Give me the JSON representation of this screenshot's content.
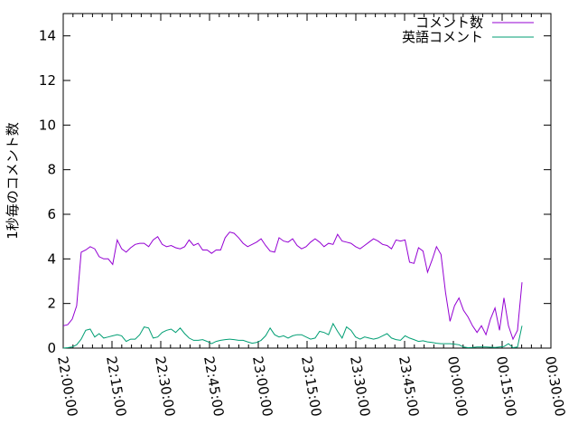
{
  "chart_data": {
    "type": "line",
    "title": "",
    "xlabel": "",
    "ylabel": "1秒毎のコメント数",
    "ylim": [
      0,
      15
    ],
    "xlim": [
      "22:00:00",
      "00:30:00"
    ],
    "x_ticks": [
      "22:00:00",
      "22:15:00",
      "22:30:00",
      "22:45:00",
      "23:00:00",
      "23:15:00",
      "23:30:00",
      "23:45:00",
      "00:00:00",
      "00:15:00",
      "00:30:00"
    ],
    "y_ticks": [
      "0",
      "2",
      "4",
      "6",
      "8",
      "10",
      "12",
      "14"
    ],
    "grid": false,
    "legend_position": "top-right",
    "x_start": "22:00:00",
    "x_step_seconds": 83,
    "series": [
      {
        "name": "コメント数",
        "color": "#9400d3",
        "values": [
          1.0,
          1.05,
          1.3,
          1.9,
          4.3,
          4.4,
          4.55,
          4.45,
          4.1,
          4.0,
          4.0,
          3.75,
          4.85,
          4.45,
          4.3,
          4.5,
          4.65,
          4.7,
          4.7,
          4.55,
          4.85,
          5.0,
          4.65,
          4.55,
          4.6,
          4.5,
          4.45,
          4.55,
          4.85,
          4.6,
          4.7,
          4.4,
          4.4,
          4.25,
          4.4,
          4.4,
          4.95,
          5.2,
          5.15,
          4.95,
          4.7,
          4.55,
          4.65,
          4.75,
          4.9,
          4.6,
          4.35,
          4.3,
          4.95,
          4.8,
          4.75,
          4.9,
          4.6,
          4.45,
          4.55,
          4.75,
          4.9,
          4.75,
          4.55,
          4.7,
          4.65,
          5.1,
          4.8,
          4.75,
          4.7,
          4.55,
          4.45,
          4.6,
          4.75,
          4.9,
          4.8,
          4.65,
          4.6,
          4.45,
          4.85,
          4.8,
          4.85,
          3.85,
          3.8,
          4.5,
          4.35,
          3.4,
          3.95,
          4.55,
          4.2,
          2.5,
          1.2,
          1.9,
          2.25,
          1.7,
          1.4,
          1.0,
          0.7,
          1.0,
          0.6,
          1.3,
          1.8,
          0.8,
          2.25,
          1.0,
          0.4,
          0.8,
          2.95
        ]
      },
      {
        "name": "英語コメント",
        "color": "#009e73",
        "values": [
          0,
          0.02,
          0.05,
          0.15,
          0.4,
          0.8,
          0.85,
          0.5,
          0.65,
          0.45,
          0.5,
          0.55,
          0.6,
          0.55,
          0.3,
          0.4,
          0.4,
          0.6,
          0.95,
          0.9,
          0.45,
          0.5,
          0.7,
          0.8,
          0.85,
          0.7,
          0.9,
          0.65,
          0.45,
          0.35,
          0.35,
          0.38,
          0.3,
          0.2,
          0.3,
          0.35,
          0.38,
          0.4,
          0.38,
          0.35,
          0.35,
          0.28,
          0.22,
          0.25,
          0.35,
          0.55,
          0.9,
          0.6,
          0.5,
          0.55,
          0.45,
          0.55,
          0.6,
          0.6,
          0.5,
          0.4,
          0.45,
          0.75,
          0.7,
          0.6,
          1.1,
          0.75,
          0.45,
          0.95,
          0.8,
          0.5,
          0.4,
          0.5,
          0.45,
          0.4,
          0.45,
          0.55,
          0.65,
          0.45,
          0.38,
          0.35,
          0.55,
          0.45,
          0.38,
          0.3,
          0.33,
          0.28,
          0.25,
          0.22,
          0.2,
          0.2,
          0.2,
          0.18,
          0.15,
          0.05,
          0.02,
          0.03,
          0.05,
          0.05,
          0.05,
          0.04,
          0.03,
          0.05,
          0.07,
          0.2,
          0.02,
          0.05,
          1.0
        ]
      }
    ]
  }
}
